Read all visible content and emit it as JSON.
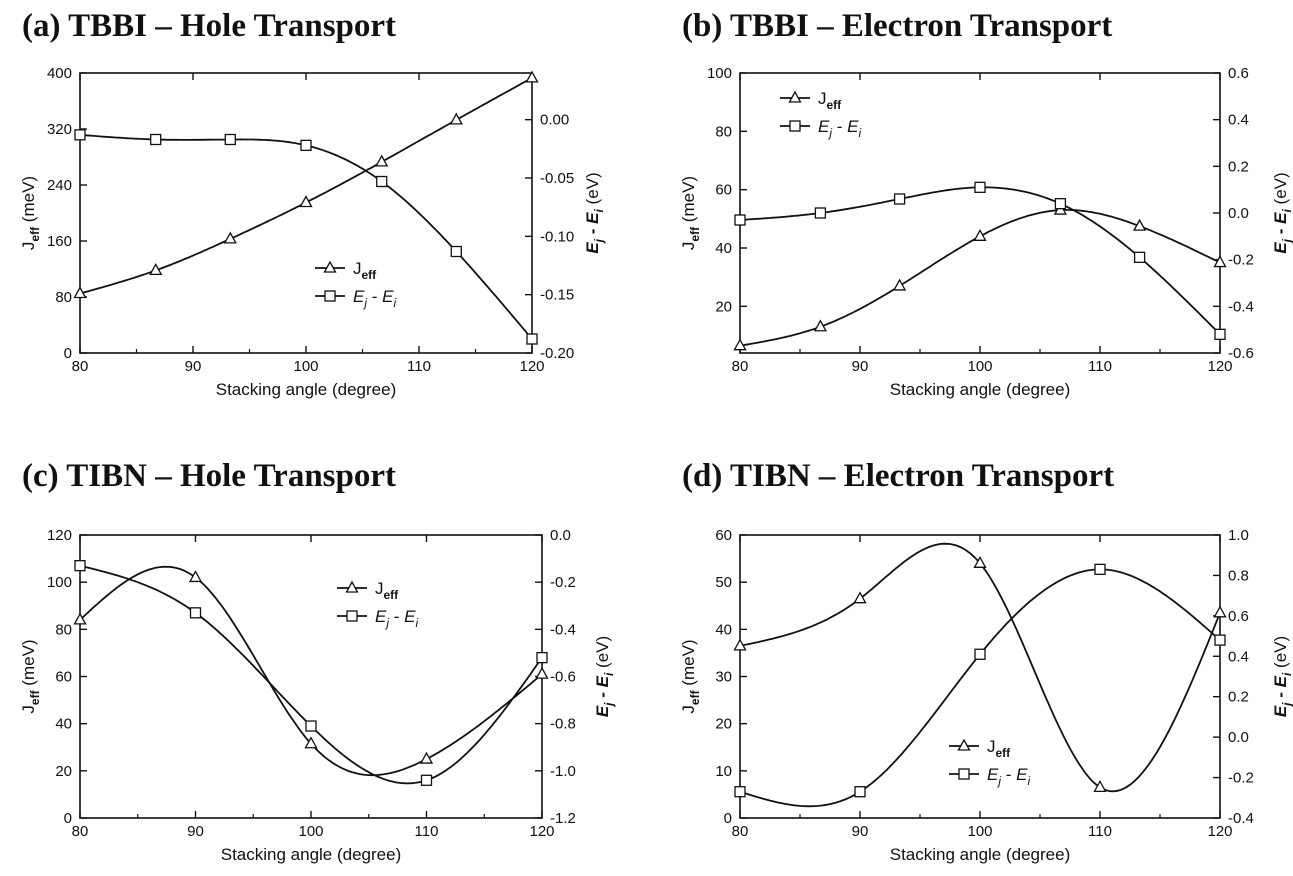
{
  "charts": [
    {
      "title": "(a) TBBI – Hole Transport",
      "chart_data": {
        "type": "line",
        "xlabel": "Stacking angle (degree)",
        "ylabel_left": "J_eff (meV)",
        "ylabel_right": "E_j - E_i (eV)",
        "xlim": [
          80,
          120
        ],
        "ylim_left": [
          0,
          400
        ],
        "ylim_right": [
          -0.2,
          0.04
        ],
        "x_ticks": [
          "80",
          "90",
          "100",
          "110",
          "120"
        ],
        "y_ticks_left": [
          "0",
          "80",
          "160",
          "240",
          "320",
          "400"
        ],
        "y_ticks_right": [
          "-0.20",
          "-0.15",
          "-0.10",
          "-0.05",
          "0.00"
        ],
        "legend_position": "center",
        "series": [
          {
            "name": "J_eff",
            "axis": "left",
            "marker": "triangle",
            "x": [
              80,
              86.7,
              93.3,
              100,
              106.7,
              113.3,
              120
            ],
            "y": [
              85,
              118,
              163,
              215,
              273,
              333,
              393
            ]
          },
          {
            "name": "E_j - E_i",
            "axis": "right",
            "marker": "square",
            "x": [
              80,
              86.7,
              93.3,
              100,
              106.7,
              113.3,
              120
            ],
            "y": [
              -0.013,
              -0.017,
              -0.017,
              -0.022,
              -0.053,
              -0.113,
              -0.188
            ]
          }
        ]
      }
    },
    {
      "title": "(b) TBBI – Electron Transport",
      "chart_data": {
        "type": "line",
        "xlabel": "Stacking angle (degree)",
        "ylabel_left": "J_eff (meV)",
        "ylabel_right": "E_j - E_i (eV)",
        "xlim": [
          80,
          120
        ],
        "ylim_left": [
          4,
          100
        ],
        "ylim_right": [
          -0.6,
          0.6
        ],
        "x_ticks": [
          "80",
          "90",
          "100",
          "110",
          "120"
        ],
        "y_ticks_left": [
          "20",
          "40",
          "60",
          "80",
          "100"
        ],
        "y_ticks_right": [
          "-0.6",
          "-0.4",
          "-0.2",
          "0.0",
          "0.2",
          "0.4",
          "0.6"
        ],
        "legend_position": "top-left",
        "series": [
          {
            "name": "J_eff",
            "axis": "left",
            "marker": "triangle",
            "x": [
              80,
              86.7,
              93.3,
              100,
              106.7,
              113.3,
              120
            ],
            "y": [
              6.5,
              13,
              27,
              44,
              53,
              47.5,
              35
            ]
          },
          {
            "name": "E_j - E_i",
            "axis": "right",
            "marker": "square",
            "x": [
              80,
              86.7,
              93.3,
              100,
              106.7,
              113.3,
              120
            ],
            "y": [
              -0.03,
              0.0,
              0.06,
              0.11,
              0.04,
              -0.19,
              -0.52
            ]
          }
        ]
      }
    },
    {
      "title": "(c) TIBN – Hole Transport",
      "chart_data": {
        "type": "line",
        "xlabel": "Stacking angle (degree)",
        "ylabel_left": "J_eff (meV)",
        "ylabel_right": "E_j - E_i (eV)",
        "xlim": [
          80,
          120
        ],
        "ylim_left": [
          0,
          120
        ],
        "ylim_right": [
          -1.2,
          0.0
        ],
        "x_ticks": [
          "80",
          "90",
          "100",
          "110",
          "120"
        ],
        "y_ticks_left": [
          "0",
          "20",
          "40",
          "60",
          "80",
          "100",
          "120"
        ],
        "y_ticks_right": [
          "-1.2",
          "-1.0",
          "-0.8",
          "-0.6",
          "-0.4",
          "-0.2",
          "0.0"
        ],
        "legend_position": "top-right",
        "series": [
          {
            "name": "J_eff",
            "axis": "left",
            "marker": "triangle",
            "x": [
              80,
              90,
              100,
              110,
              120
            ],
            "y": [
              84,
              102,
              31.5,
              25,
              61
            ]
          },
          {
            "name": "E_j - E_i",
            "axis": "right",
            "marker": "square",
            "x": [
              80,
              90,
              100,
              110,
              120
            ],
            "y": [
              -0.13,
              -0.33,
              -0.81,
              -1.04,
              -0.52
            ]
          }
        ]
      }
    },
    {
      "title": "(d) TIBN – Electron Transport",
      "chart_data": {
        "type": "line",
        "xlabel": "Stacking angle (degree)",
        "ylabel_left": "J_eff (meV)",
        "ylabel_right": "E_j - E_i (eV)",
        "xlim": [
          80,
          120
        ],
        "ylim_left": [
          0,
          60
        ],
        "ylim_right": [
          -0.4,
          1.0
        ],
        "x_ticks": [
          "80",
          "90",
          "100",
          "110",
          "120"
        ],
        "y_ticks_left": [
          "0",
          "10",
          "20",
          "30",
          "40",
          "50",
          "60"
        ],
        "y_ticks_right": [
          "-0.4",
          "-0.2",
          "0.0",
          "0.2",
          "0.4",
          "0.6",
          "0.8",
          "1.0"
        ],
        "legend_position": "bottom-center",
        "series": [
          {
            "name": "J_eff",
            "axis": "left",
            "marker": "triangle",
            "x": [
              80,
              90,
              100,
              110,
              120
            ],
            "y": [
              36.5,
              46.5,
              54,
              6.5,
              43.5
            ]
          },
          {
            "name": "E_j - E_i",
            "axis": "right",
            "marker": "square",
            "x": [
              80,
              90,
              100,
              110,
              120
            ],
            "y": [
              -0.27,
              -0.27,
              0.41,
              0.83,
              0.48
            ]
          }
        ]
      }
    }
  ],
  "legend_labels": {
    "jeff_main": "J",
    "jeff_sub": "eff",
    "e_j": "E",
    "e_j_sub": "j",
    "minus": " - ",
    "e_i": "E",
    "e_i_sub": "i"
  },
  "axis_label_parts": {
    "left_main": "J",
    "left_sub": "eff",
    "left_unit": " (meV)",
    "unit_ev": " (eV)"
  }
}
